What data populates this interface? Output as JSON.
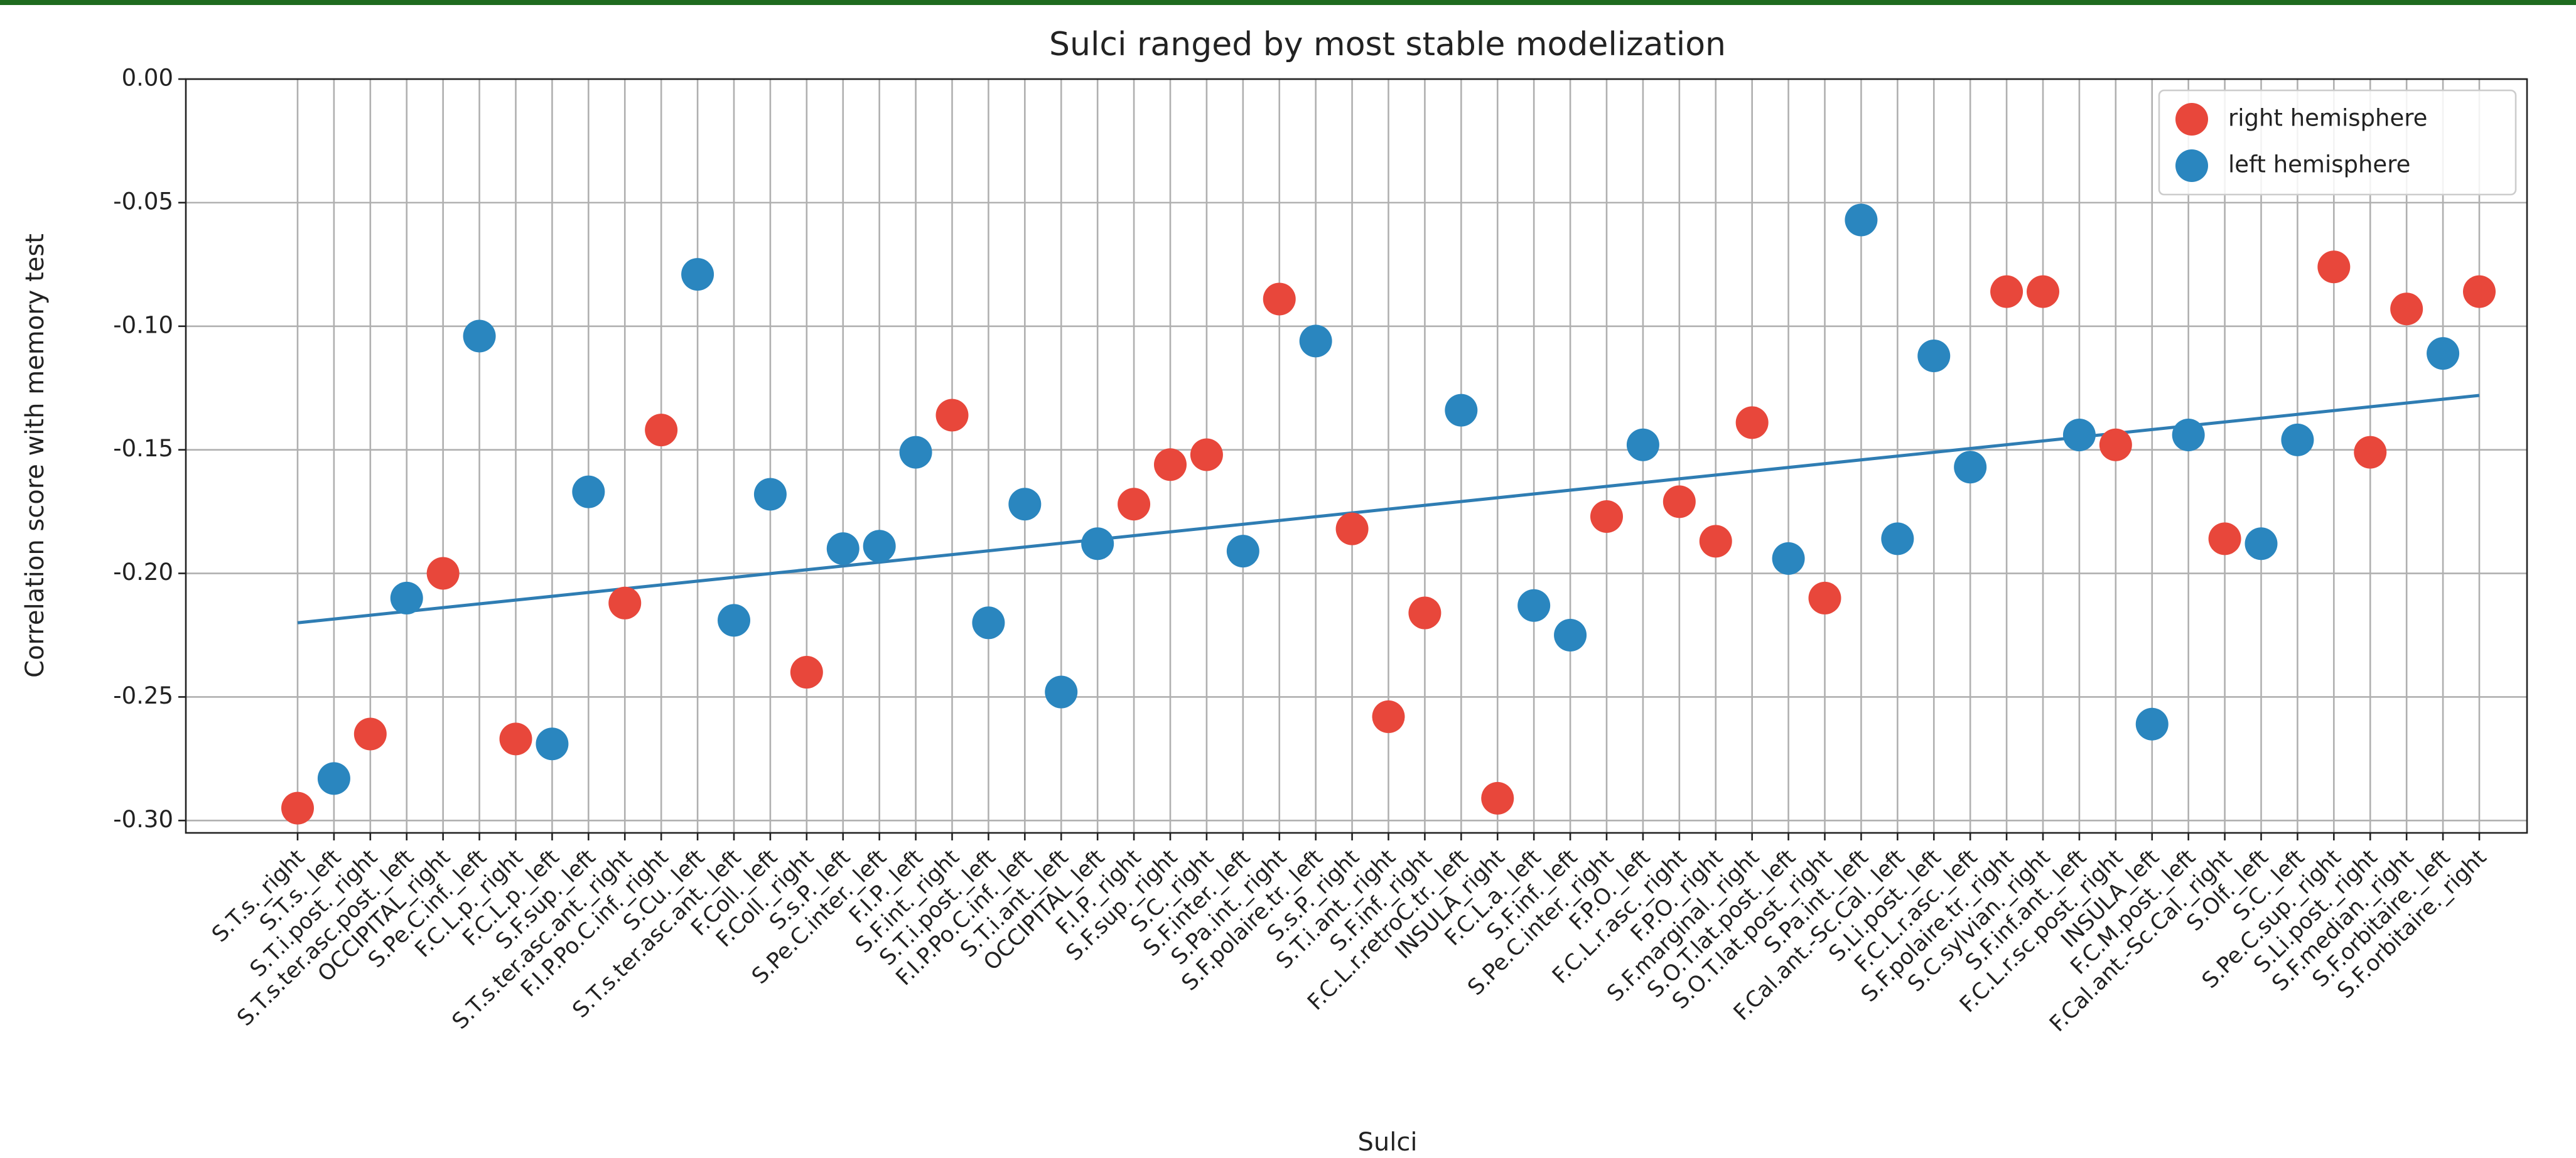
{
  "chart_data": {
    "type": "scatter",
    "title": "Sulci ranged by most stable modelization",
    "x_label": "Sulci",
    "y_label": "Correlation score with memory test",
    "categories": [
      "S.T.s._right",
      "S.T.s._left",
      "S.T.i.post._right",
      "S.T.s.ter.asc.post._left",
      "OCCIPITAL_right",
      "S.Pe.C.inf._left",
      "F.C.L.p._right",
      "F.C.L.p._left",
      "S.F.sup._left",
      "S.T.s.ter.asc.ant._right",
      "F.I.P.Po.C.inf._right",
      "S.Cu._left",
      "S.T.s.ter.asc.ant._left",
      "F.Coll._left",
      "F.Coll._right",
      "S.s.P._left",
      "S.Pe.C.inter._left",
      "F.I.P._left",
      "S.F.int._right",
      "S.T.i.post._left",
      "F.I.P.Po.C.inf._left",
      "S.T.i.ant._left",
      "OCCIPITAL_left",
      "F.I.P._right",
      "S.F.sup._right",
      "S.C._right",
      "S.F.inter._left",
      "S.Pa.int._right",
      "S.F.polaire.tr._left",
      "S.s.P._right",
      "S.T.i.ant._right",
      "S.F.inf._right",
      "F.C.L.r.retroC.tr._left",
      "INSULA_right",
      "F.C.L.a._left",
      "S.F.inf._left",
      "S.Pe.C.inter._right",
      "F.P.O._left",
      "F.C.L.r.asc._right",
      "F.P.O._right",
      "S.F.marginal._right",
      "S.O.T.lat.post._left",
      "S.O.T.lat.post._right",
      "S.Pa.int._left",
      "F.Cal.ant.-Sc.Cal._left",
      "S.Li.post._left",
      "F.C.L.r.asc._left",
      "S.F.polaire.tr._right",
      "S.C.sylvian._right",
      "S.F.inf.ant._left",
      "F.C.L.r.sc.post._right",
      "INSULA_left",
      "F.C.M.post._left",
      "F.Cal.ant.-Sc.Cal._right",
      "S.Olf._left",
      "S.C._left",
      "S.Pe.C.sup._right",
      "S.Li.post._right",
      "S.F.median._right",
      "S.F.orbitaire._left",
      "S.F.orbitaire._right"
    ],
    "series": [
      {
        "name": "right hemisphere",
        "color": "#e8473b",
        "values": [
          -0.295,
          null,
          -0.265,
          null,
          -0.2,
          null,
          -0.267,
          null,
          null,
          -0.212,
          -0.142,
          null,
          null,
          null,
          -0.24,
          null,
          null,
          null,
          -0.136,
          null,
          null,
          null,
          null,
          -0.172,
          -0.156,
          -0.152,
          null,
          -0.089,
          null,
          -0.182,
          -0.258,
          -0.216,
          null,
          -0.291,
          null,
          null,
          -0.177,
          null,
          -0.171,
          -0.187,
          -0.139,
          null,
          -0.21,
          null,
          null,
          null,
          null,
          -0.086,
          -0.086,
          null,
          -0.148,
          null,
          null,
          -0.186,
          null,
          null,
          -0.076,
          -0.151,
          -0.093,
          null,
          -0.086
        ]
      },
      {
        "name": "left hemisphere",
        "color": "#2a86bf",
        "values": [
          null,
          -0.283,
          null,
          -0.21,
          null,
          -0.104,
          null,
          -0.269,
          -0.167,
          null,
          null,
          -0.079,
          -0.219,
          -0.168,
          null,
          -0.19,
          -0.189,
          -0.151,
          null,
          -0.22,
          -0.172,
          -0.248,
          -0.188,
          null,
          null,
          null,
          -0.191,
          null,
          -0.106,
          null,
          null,
          null,
          -0.134,
          null,
          -0.213,
          -0.225,
          null,
          -0.148,
          null,
          null,
          null,
          -0.194,
          null,
          -0.057,
          -0.186,
          -0.112,
          -0.157,
          null,
          null,
          -0.144,
          null,
          -0.261,
          -0.144,
          null,
          -0.188,
          -0.146,
          null,
          null,
          null,
          -0.111,
          null
        ]
      }
    ],
    "trend_line": {
      "values": [
        -0.22,
        -0.128
      ],
      "color": "#2f7db3"
    },
    "ylim": [
      -0.305,
      0
    ],
    "yticks": [
      {
        "value": 0,
        "label": "0.00"
      },
      {
        "value": -0.05,
        "label": "-0.05"
      },
      {
        "value": -0.1,
        "label": "-0.10"
      },
      {
        "value": -0.15,
        "label": "-0.15"
      },
      {
        "value": -0.2,
        "label": "-0.20"
      },
      {
        "value": -0.25,
        "label": "-0.25"
      },
      {
        "value": -0.3,
        "label": "-0.30"
      }
    ],
    "grid": true,
    "legend": "upper right"
  }
}
